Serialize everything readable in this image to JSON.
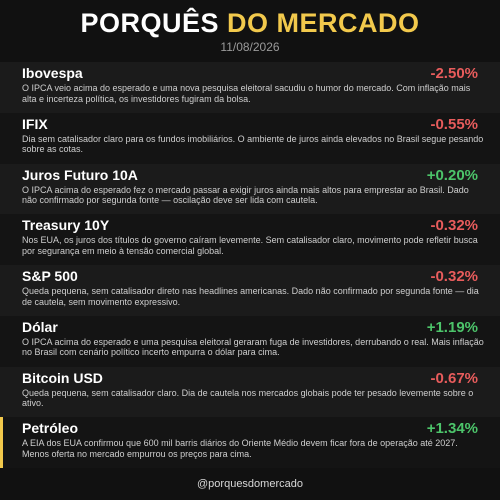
{
  "header": {
    "title_part1": "PORQUÊS",
    "title_part2": "DO MERCADO",
    "date": "11/08/2026"
  },
  "items": [
    {
      "name": "Ibovespa",
      "change": "-2.50%",
      "color": "#e85c5c",
      "description": "O IPCA veio acima do esperado e uma nova pesquisa eleitoral sacudiu o humor do mercado. Com inflação mais alta e incerteza política, os investidores fugiram da bolsa."
    },
    {
      "name": "IFIX",
      "change": "-0.55%",
      "color": "#e85c5c",
      "description": "Dia sem catalisador claro para os fundos imobiliários. O ambiente de juros ainda elevados no Brasil segue pesando sobre as cotas."
    },
    {
      "name": "Juros Futuro 10A",
      "change": "+0.20%",
      "color": "#4cc46a",
      "description": "O IPCA acima do esperado fez o mercado passar a exigir juros ainda mais altos para emprestar ao Brasil. Dado não confirmado por segunda fonte — oscilação deve ser lida com cautela."
    },
    {
      "name": "Treasury 10Y",
      "change": "-0.32%",
      "color": "#e85c5c",
      "description": "Nos EUA, os juros dos títulos do governo caíram levemente. Sem catalisador claro, movimento pode refletir busca por segurança em meio à tensão comercial global."
    },
    {
      "name": "S&P 500",
      "change": "-0.32%",
      "color": "#e85c5c",
      "description": "Queda pequena, sem catalisador direto nas headlines americanas. Dado não confirmado por segunda fonte — dia de cautela, sem movimento expressivo."
    },
    {
      "name": "Dólar",
      "change": "+1.19%",
      "color": "#4cc46a",
      "description": "O IPCA acima do esperado e uma pesquisa eleitoral geraram fuga de investidores, derrubando o real. Mais inflação no Brasil com cenário político incerto empurra o dólar para cima."
    },
    {
      "name": "Bitcoin USD",
      "change": "-0.67%",
      "color": "#e85c5c",
      "description": "Queda pequena, sem catalisador claro. Dia de cautela nos mercados globais pode ter pesado levemente sobre o ativo."
    },
    {
      "name": "Petróleo",
      "change": "+1.34%",
      "color": "#4cc46a",
      "highlight": true,
      "description": "A EIA dos EUA confirmou que 600 mil barris diários do Oriente Médio devem ficar fora de operação até 2027. Menos oferta no mercado empurrou os preços para cima."
    }
  ],
  "footer": {
    "handle": "@porquesdomercado"
  }
}
